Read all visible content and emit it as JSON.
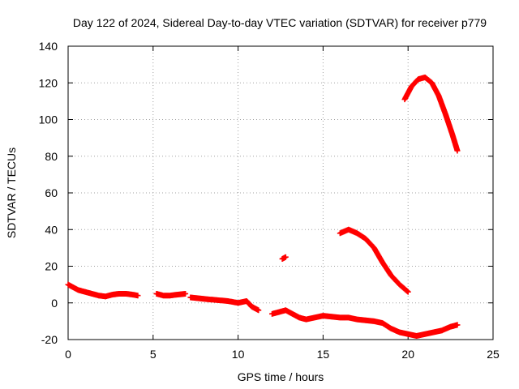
{
  "chart_data": {
    "type": "scatter",
    "title": "Day 122 of 2024, Sidereal Day-to-day VTEC variation (SDTVAR) for receiver p779",
    "xlabel": "GPS time / hours",
    "ylabel": "SDTVAR / TECUs",
    "xlim": [
      0,
      25
    ],
    "ylim": [
      -20,
      140
    ],
    "xticks": [
      0,
      5,
      10,
      15,
      20,
      25
    ],
    "yticks": [
      -20,
      0,
      20,
      40,
      60,
      80,
      100,
      120,
      140
    ],
    "grid": true,
    "marker": "plus",
    "series": [
      {
        "name": "SDTVAR",
        "color": "#ff0000",
        "segments": [
          {
            "x": [
              0.0,
              0.3,
              0.6,
              1.0,
              1.4,
              1.8,
              2.2,
              2.6,
              3.0,
              3.4,
              3.8,
              4.1
            ],
            "y": [
              10,
              8.5,
              7,
              6,
              5,
              4,
              3.5,
              4.5,
              5,
              5,
              4.5,
              4
            ]
          },
          {
            "x": [
              5.2,
              5.6,
              6.0,
              6.4,
              6.9
            ],
            "y": [
              5,
              4,
              4,
              4.5,
              5
            ]
          },
          {
            "x": [
              7.2,
              7.7,
              8.2,
              8.8,
              9.4,
              10.0,
              10.5,
              10.8,
              11.2
            ],
            "y": [
              3,
              2.5,
              2,
              1.5,
              1,
              0,
              1,
              -2,
              -4
            ]
          },
          {
            "x": [
              12.0,
              12.4,
              12.8,
              13.2,
              13.6,
              14.0,
              14.5,
              15.0,
              15.5,
              16.0,
              16.5,
              17.0,
              17.5,
              18.0,
              18.5,
              19.0,
              19.5,
              20.0,
              20.5,
              21.0,
              21.5,
              22.0,
              22.5,
              22.9
            ],
            "y": [
              -6,
              -5,
              -4,
              -6,
              -8,
              -9,
              -8,
              -7,
              -7.5,
              -8,
              -8,
              -9,
              -9.5,
              -10,
              -11,
              -14,
              -16,
              -17,
              -18,
              -17,
              -16,
              -15,
              -13,
              -12
            ]
          },
          {
            "x": [
              12.6,
              12.8
            ],
            "y": [
              24,
              25
            ]
          },
          {
            "x": [
              16.0,
              16.5,
              17.0,
              17.5,
              18.0,
              18.5,
              19.0,
              19.5,
              20.0
            ],
            "y": [
              38,
              40,
              38,
              35,
              30,
              22,
              15,
              10,
              6
            ]
          },
          {
            "x": [
              19.8,
              20.2,
              20.6,
              21.0,
              21.4,
              21.8,
              22.2,
              22.6,
              22.9
            ],
            "y": [
              111,
              118,
              122,
              123,
              120,
              113,
              103,
              92,
              83
            ]
          }
        ]
      }
    ]
  }
}
